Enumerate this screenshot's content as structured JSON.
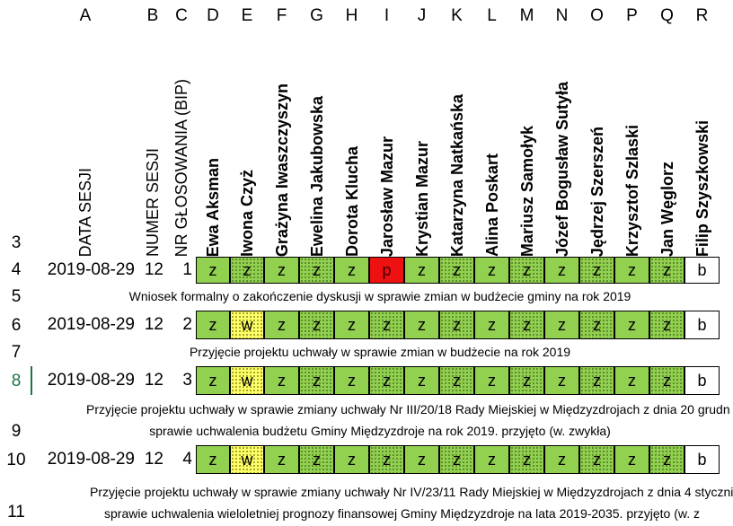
{
  "columns": [
    "A",
    "B",
    "C",
    "D",
    "E",
    "F",
    "G",
    "H",
    "I",
    "J",
    "K",
    "L",
    "M",
    "N",
    "O",
    "P",
    "Q",
    "R"
  ],
  "rows": [
    "3",
    "4",
    "5",
    "6",
    "7",
    "8",
    "9",
    "10",
    "11"
  ],
  "selected_row": "8",
  "headers": {
    "date": "DATA SESJI",
    "session": "NUMER SESJI",
    "vote_no": "NR GŁOSOWANIA (BIP)",
    "councillors": [
      "Ewa Aksman",
      "Iwona Czyż",
      "Grażyna Iwaszczyszyn",
      "Ewelina Jakubowska",
      "Dorota Klucha",
      "Jarosław Mazur",
      "Krystian Mazur",
      "Katarzyna Natkańska",
      "Alina Poskart",
      "Mariusz Samołyk",
      "Józef Bogusław Sutyła",
      "Jędrzej Szerszeń",
      "Krzysztof Szlaski",
      "Jan Węglorz",
      "Filip Szyszkowski"
    ]
  },
  "votes": [
    {
      "date": "2019-08-29",
      "session": "12",
      "no": "1",
      "cells": [
        "z",
        "z",
        "z",
        "z",
        "z",
        "p",
        "z",
        "z",
        "z",
        "z",
        "z",
        "z",
        "z",
        "z",
        "b"
      ]
    },
    {
      "date": "2019-08-29",
      "session": "12",
      "no": "2",
      "cells": [
        "z",
        "w",
        "z",
        "z",
        "z",
        "z",
        "z",
        "z",
        "z",
        "z",
        "z",
        "z",
        "z",
        "z",
        "b"
      ]
    },
    {
      "date": "2019-08-29",
      "session": "12",
      "no": "3",
      "cells": [
        "z",
        "w",
        "z",
        "z",
        "z",
        "z",
        "z",
        "z",
        "z",
        "z",
        "z",
        "z",
        "z",
        "z",
        "b"
      ]
    },
    {
      "date": "2019-08-29",
      "session": "12",
      "no": "4",
      "cells": [
        "z",
        "w",
        "z",
        "z",
        "z",
        "z",
        "z",
        "z",
        "z",
        "z",
        "z",
        "z",
        "z",
        "z",
        "b"
      ]
    }
  ],
  "descriptions": {
    "r5": "Wniosek formalny o zakończenie dyskusji w sprawie zmian w budżecie gminy na rok 2019",
    "r7": "Przyjęcie projektu uchwały w sprawie zmian w budżecie na rok 2019",
    "r9a": "Przyjęcie projektu uchwały w sprawie zmiany uchwały Nr III/20/18 Rady Miejskiej w Międzyzdrojach z dnia 20 grudn",
    "r9b": "sprawie uchwalenia budżetu Gminy Międzyzdroje na rok 2019. przyjęto (w. zwykła)",
    "r11a": "Przyjęcie projektu uchwały w sprawie zmiany uchwały Nr IV/23/11 Rady Miejskiej w Międzyzdrojach z dnia 4 styczni",
    "r11b": "sprawie uchwalenia wieloletniej prognozy finansowej Gminy Międzyzdroje na lata 2019-2035. przyjęto (w. z"
  },
  "colors": {
    "yes": "#92d050",
    "abstain": "#ffff66",
    "against": "#ee1111",
    "absent": "#ffffff",
    "selection": "#217346"
  }
}
